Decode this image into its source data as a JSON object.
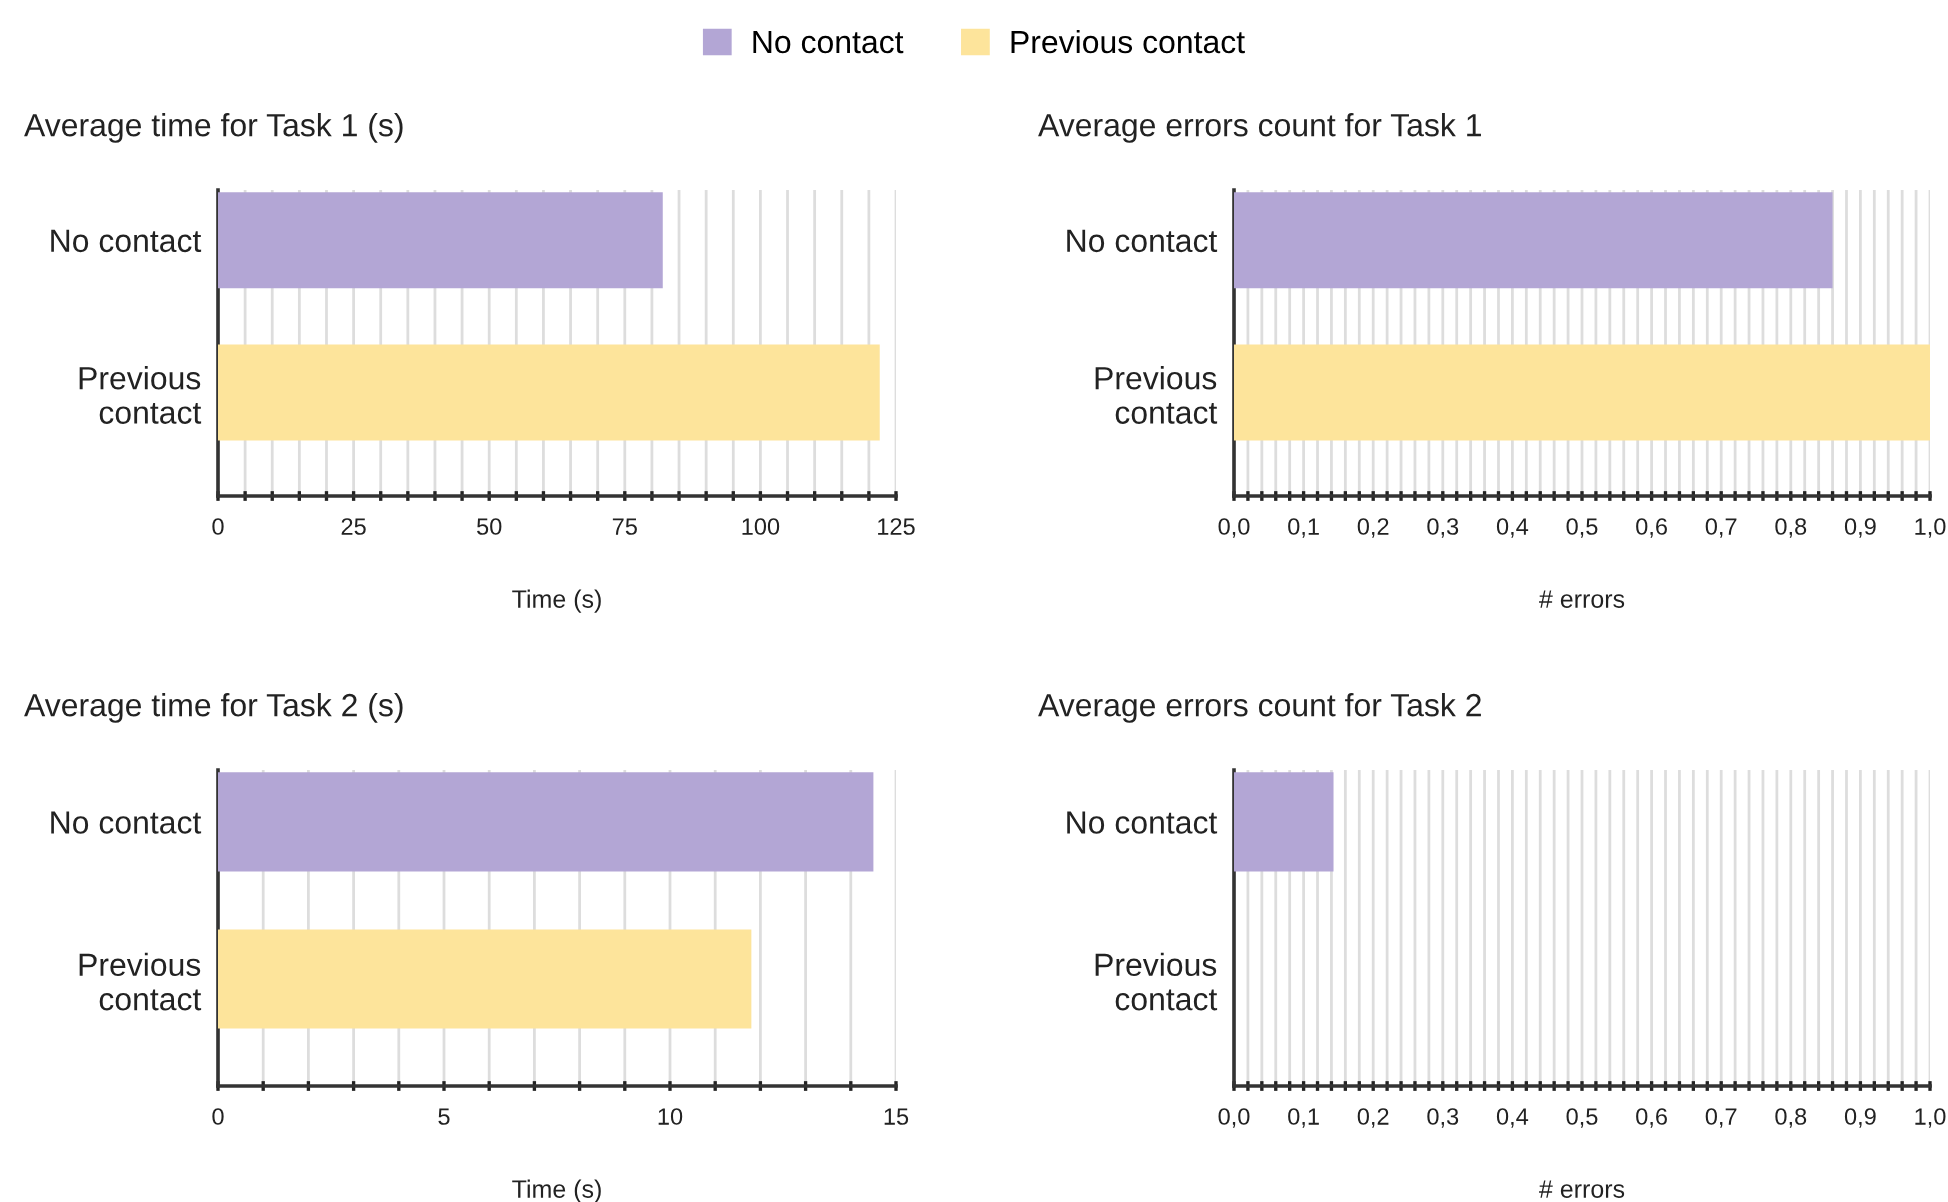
{
  "chart_data": [
    {
      "type": "bar",
      "orientation": "horizontal",
      "title": "Average time for Task 1 (s)",
      "xlabel": "Time (s)",
      "categories": [
        "No contact",
        "Previous\ncontact"
      ],
      "legend": "top",
      "grid": "x",
      "series": [
        {
          "name": "No contact",
          "color": "#b3a6d5",
          "values": [
            82,
            null
          ]
        },
        {
          "name": "Previous contact",
          "color": "#fde49b",
          "values": [
            null,
            122
          ]
        }
      ],
      "xlim": [
        0,
        125
      ],
      "xticks": [
        0,
        {
          "value": 5,
          "label": null
        },
        {
          "value": 10,
          "label": null
        },
        {
          "value": 15,
          "label": null
        },
        {
          "value": 20,
          "label": null
        },
        25,
        {
          "value": 30,
          "label": null
        },
        {
          "value": 35,
          "label": null
        },
        {
          "value": 40,
          "label": null
        },
        {
          "value": 45,
          "label": null
        },
        50,
        {
          "value": 55,
          "label": null
        },
        {
          "value": 60,
          "label": null
        },
        {
          "value": 65,
          "label": null
        },
        {
          "value": 70,
          "label": null
        },
        75,
        {
          "value": 80,
          "label": null
        },
        {
          "value": 85,
          "label": null
        },
        {
          "value": 90,
          "label": null
        },
        {
          "value": 95,
          "label": null
        },
        100,
        {
          "value": 105,
          "label": null
        },
        {
          "value": 110,
          "label": null
        },
        {
          "value": 115,
          "label": null
        },
        {
          "value": 120,
          "label": null
        },
        125
      ]
    },
    {
      "type": "bar",
      "orientation": "horizontal",
      "title": "Average errors count for Task 1",
      "xlabel": "# errors",
      "categories": [
        "No contact",
        "Previous\ncontact"
      ],
      "grid": "x",
      "series": [
        {
          "color": "#b3a6d5",
          "values": [
            0.86,
            null
          ]
        },
        {
          "color": "#fde49b",
          "values": [
            null,
            1.0
          ]
        }
      ],
      "xlim": [
        0,
        1
      ],
      "xticks": [
        {
          "value": 0,
          "label": "0,0"
        },
        {
          "value": 0.02,
          "label": null
        },
        {
          "value": 0.04,
          "label": null
        },
        {
          "value": 0.06,
          "label": null
        },
        {
          "value": 0.08,
          "label": null
        },
        {
          "value": 0.1,
          "label": "0,1"
        },
        {
          "value": 0.12,
          "label": null
        },
        {
          "value": 0.14,
          "label": null
        },
        {
          "value": 0.16,
          "label": null
        },
        {
          "value": 0.18,
          "label": null
        },
        {
          "value": 0.2,
          "label": "0,2"
        },
        {
          "value": 0.22,
          "label": null
        },
        {
          "value": 0.24,
          "label": null
        },
        {
          "value": 0.26,
          "label": null
        },
        {
          "value": 0.28,
          "label": null
        },
        {
          "value": 0.3,
          "label": "0,3"
        },
        {
          "value": 0.32,
          "label": null
        },
        {
          "value": 0.34,
          "label": null
        },
        {
          "value": 0.36,
          "label": null
        },
        {
          "value": 0.38,
          "label": null
        },
        {
          "value": 0.4,
          "label": "0,4"
        },
        {
          "value": 0.42,
          "label": null
        },
        {
          "value": 0.44,
          "label": null
        },
        {
          "value": 0.46,
          "label": null
        },
        {
          "value": 0.48,
          "label": null
        },
        {
          "value": 0.5,
          "label": "0,5"
        },
        {
          "value": 0.52,
          "label": null
        },
        {
          "value": 0.54,
          "label": null
        },
        {
          "value": 0.56,
          "label": null
        },
        {
          "value": 0.58,
          "label": null
        },
        {
          "value": 0.6,
          "label": "0,6"
        },
        {
          "value": 0.62,
          "label": null
        },
        {
          "value": 0.64,
          "label": null
        },
        {
          "value": 0.66,
          "label": null
        },
        {
          "value": 0.68,
          "label": null
        },
        {
          "value": 0.7,
          "label": "0,7"
        },
        {
          "value": 0.72,
          "label": null
        },
        {
          "value": 0.74,
          "label": null
        },
        {
          "value": 0.76,
          "label": null
        },
        {
          "value": 0.78,
          "label": null
        },
        {
          "value": 0.8,
          "label": "0,8"
        },
        {
          "value": 0.82,
          "label": null
        },
        {
          "value": 0.84,
          "label": null
        },
        {
          "value": 0.86,
          "label": null
        },
        {
          "value": 0.88,
          "label": null
        },
        {
          "value": 0.9,
          "label": "0,9"
        },
        {
          "value": 0.92,
          "label": null
        },
        {
          "value": 0.94,
          "label": null
        },
        {
          "value": 0.96,
          "label": null
        },
        {
          "value": 0.98,
          "label": null
        },
        {
          "value": 1.0,
          "label": "1,0"
        }
      ]
    },
    {
      "type": "bar",
      "orientation": "horizontal",
      "title": "Average time for Task 2 (s)",
      "xlabel": "Time (s)",
      "categories": [
        "No contact",
        "Previous\ncontact"
      ],
      "grid": "x",
      "series": [
        {
          "color": "#b3a6d5",
          "values": [
            14.5,
            null
          ]
        },
        {
          "color": "#fde49b",
          "values": [
            null,
            11.8
          ]
        }
      ],
      "xlim": [
        0,
        15
      ],
      "xticks": [
        0,
        {
          "value": 1,
          "label": null
        },
        {
          "value": 2,
          "label": null
        },
        {
          "value": 3,
          "label": null
        },
        {
          "value": 4,
          "label": null
        },
        5,
        {
          "value": 6,
          "label": null
        },
        {
          "value": 7,
          "label": null
        },
        {
          "value": 8,
          "label": null
        },
        {
          "value": 9,
          "label": null
        },
        10,
        {
          "value": 11,
          "label": null
        },
        {
          "value": 12,
          "label": null
        },
        {
          "value": 13,
          "label": null
        },
        {
          "value": 14,
          "label": null
        },
        15
      ]
    },
    {
      "type": "bar",
      "orientation": "horizontal",
      "title": "Average errors count for Task 2",
      "xlabel": "# errors",
      "categories": [
        "No contact",
        "Previous\ncontact"
      ],
      "grid": "x",
      "series": [
        {
          "color": "#b3a6d5",
          "values": [
            0.143,
            null
          ]
        },
        {
          "color": "#fde49b",
          "values": [
            null,
            0
          ]
        }
      ],
      "xlim": [
        0,
        1
      ],
      "xticks": [
        {
          "value": 0,
          "label": "0,0"
        },
        {
          "value": 0.02,
          "label": null
        },
        {
          "value": 0.04,
          "label": null
        },
        {
          "value": 0.06,
          "label": null
        },
        {
          "value": 0.08,
          "label": null
        },
        {
          "value": 0.1,
          "label": "0,1"
        },
        {
          "value": 0.12,
          "label": null
        },
        {
          "value": 0.14,
          "label": null
        },
        {
          "value": 0.16,
          "label": null
        },
        {
          "value": 0.18,
          "label": null
        },
        {
          "value": 0.2,
          "label": "0,2"
        },
        {
          "value": 0.22,
          "label": null
        },
        {
          "value": 0.24,
          "label": null
        },
        {
          "value": 0.26,
          "label": null
        },
        {
          "value": 0.28,
          "label": null
        },
        {
          "value": 0.3,
          "label": "0,3"
        },
        {
          "value": 0.32,
          "label": null
        },
        {
          "value": 0.34,
          "label": null
        },
        {
          "value": 0.36,
          "label": null
        },
        {
          "value": 0.38,
          "label": null
        },
        {
          "value": 0.4,
          "label": "0,4"
        },
        {
          "value": 0.42,
          "label": null
        },
        {
          "value": 0.44,
          "label": null
        },
        {
          "value": 0.46,
          "label": null
        },
        {
          "value": 0.48,
          "label": null
        },
        {
          "value": 0.5,
          "label": "0,5"
        },
        {
          "value": 0.52,
          "label": null
        },
        {
          "value": 0.54,
          "label": null
        },
        {
          "value": 0.56,
          "label": null
        },
        {
          "value": 0.58,
          "label": null
        },
        {
          "value": 0.6,
          "label": "0,6"
        },
        {
          "value": 0.62,
          "label": null
        },
        {
          "value": 0.64,
          "label": null
        },
        {
          "value": 0.66,
          "label": null
        },
        {
          "value": 0.68,
          "label": null
        },
        {
          "value": 0.7,
          "label": "0,7"
        },
        {
          "value": 0.72,
          "label": null
        },
        {
          "value": 0.74,
          "label": null
        },
        {
          "value": 0.76,
          "label": null
        },
        {
          "value": 0.78,
          "label": null
        },
        {
          "value": 0.8,
          "label": "0,8"
        },
        {
          "value": 0.82,
          "label": null
        },
        {
          "value": 0.84,
          "label": null
        },
        {
          "value": 0.86,
          "label": null
        },
        {
          "value": 0.88,
          "label": null
        },
        {
          "value": 0.9,
          "label": "0,9"
        },
        {
          "value": 0.92,
          "label": null
        },
        {
          "value": 0.94,
          "label": null
        },
        {
          "value": 0.96,
          "label": null
        },
        {
          "value": 0.98,
          "label": null
        },
        {
          "value": 1.0,
          "label": "1,0"
        }
      ]
    }
  ]
}
